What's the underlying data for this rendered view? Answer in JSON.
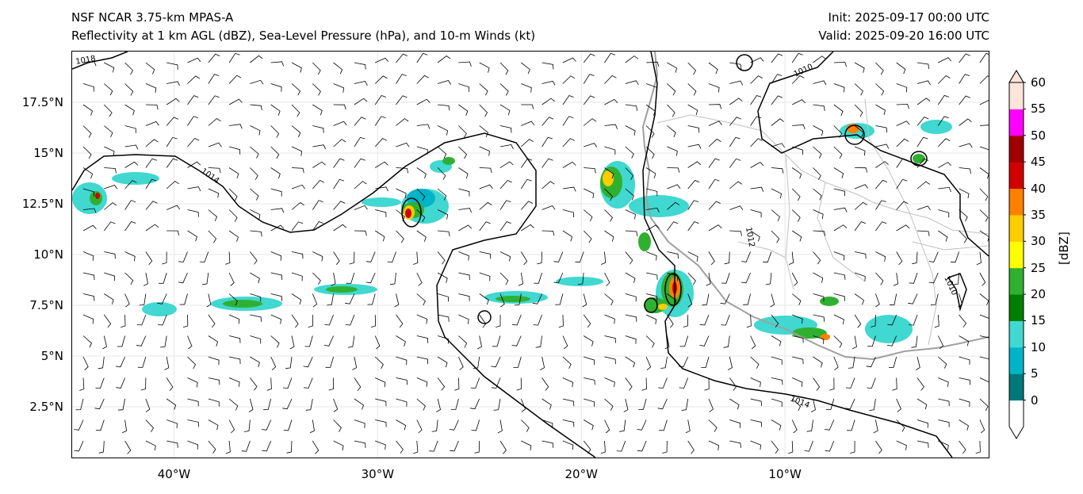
{
  "header": {
    "title_left_line1": "NSF NCAR 3.75-km MPAS-A",
    "title_left_line2": "Reflectivity at 1 km AGL (dBZ), Sea-Level Pressure (hPa), and 10-m Winds (kt)",
    "title_right_line1": "Init: 2025-09-17 00:00 UTC",
    "title_right_line2": "Valid: 2025-09-20 16:00 UTC"
  },
  "map": {
    "lon_range": [
      -45,
      0
    ],
    "lat_range": [
      0,
      20
    ],
    "lat_ticks": [
      {
        "value": 17.5,
        "label": "17.5°N"
      },
      {
        "value": 15,
        "label": "15°N"
      },
      {
        "value": 12.5,
        "label": "12.5°N"
      },
      {
        "value": 10,
        "label": "10°N"
      },
      {
        "value": 7.5,
        "label": "7.5°N"
      },
      {
        "value": 5,
        "label": "5°N"
      },
      {
        "value": 2.5,
        "label": "2.5°N"
      }
    ],
    "lon_ticks": [
      {
        "value": -40,
        "label": "40°W"
      },
      {
        "value": -30,
        "label": "30°W"
      },
      {
        "value": -20,
        "label": "20°W"
      },
      {
        "value": -10,
        "label": "10°W"
      }
    ],
    "pressure_contour_labels": [
      "1018",
      "1014",
      "1010",
      "1012",
      "1010",
      "1014"
    ],
    "colors": {
      "coastline": "#a0a0a0",
      "border": "#c0c0c0",
      "isobar": "#000000",
      "barb": "#000000"
    }
  },
  "colorbar": {
    "title": "[dBZ]",
    "tick_labels": [
      "0",
      "5",
      "10",
      "15",
      "20",
      "25",
      "30",
      "35",
      "40",
      "45",
      "50",
      "55",
      "60"
    ],
    "colors": [
      "#ffffff",
      "#00787a",
      "#00b4c8",
      "#40d8d0",
      "#007f00",
      "#30b030",
      "#ffff00",
      "#ffcc00",
      "#ff8000",
      "#d00000",
      "#a00000",
      "#ff00ff",
      "#ffe4d8"
    ]
  }
}
